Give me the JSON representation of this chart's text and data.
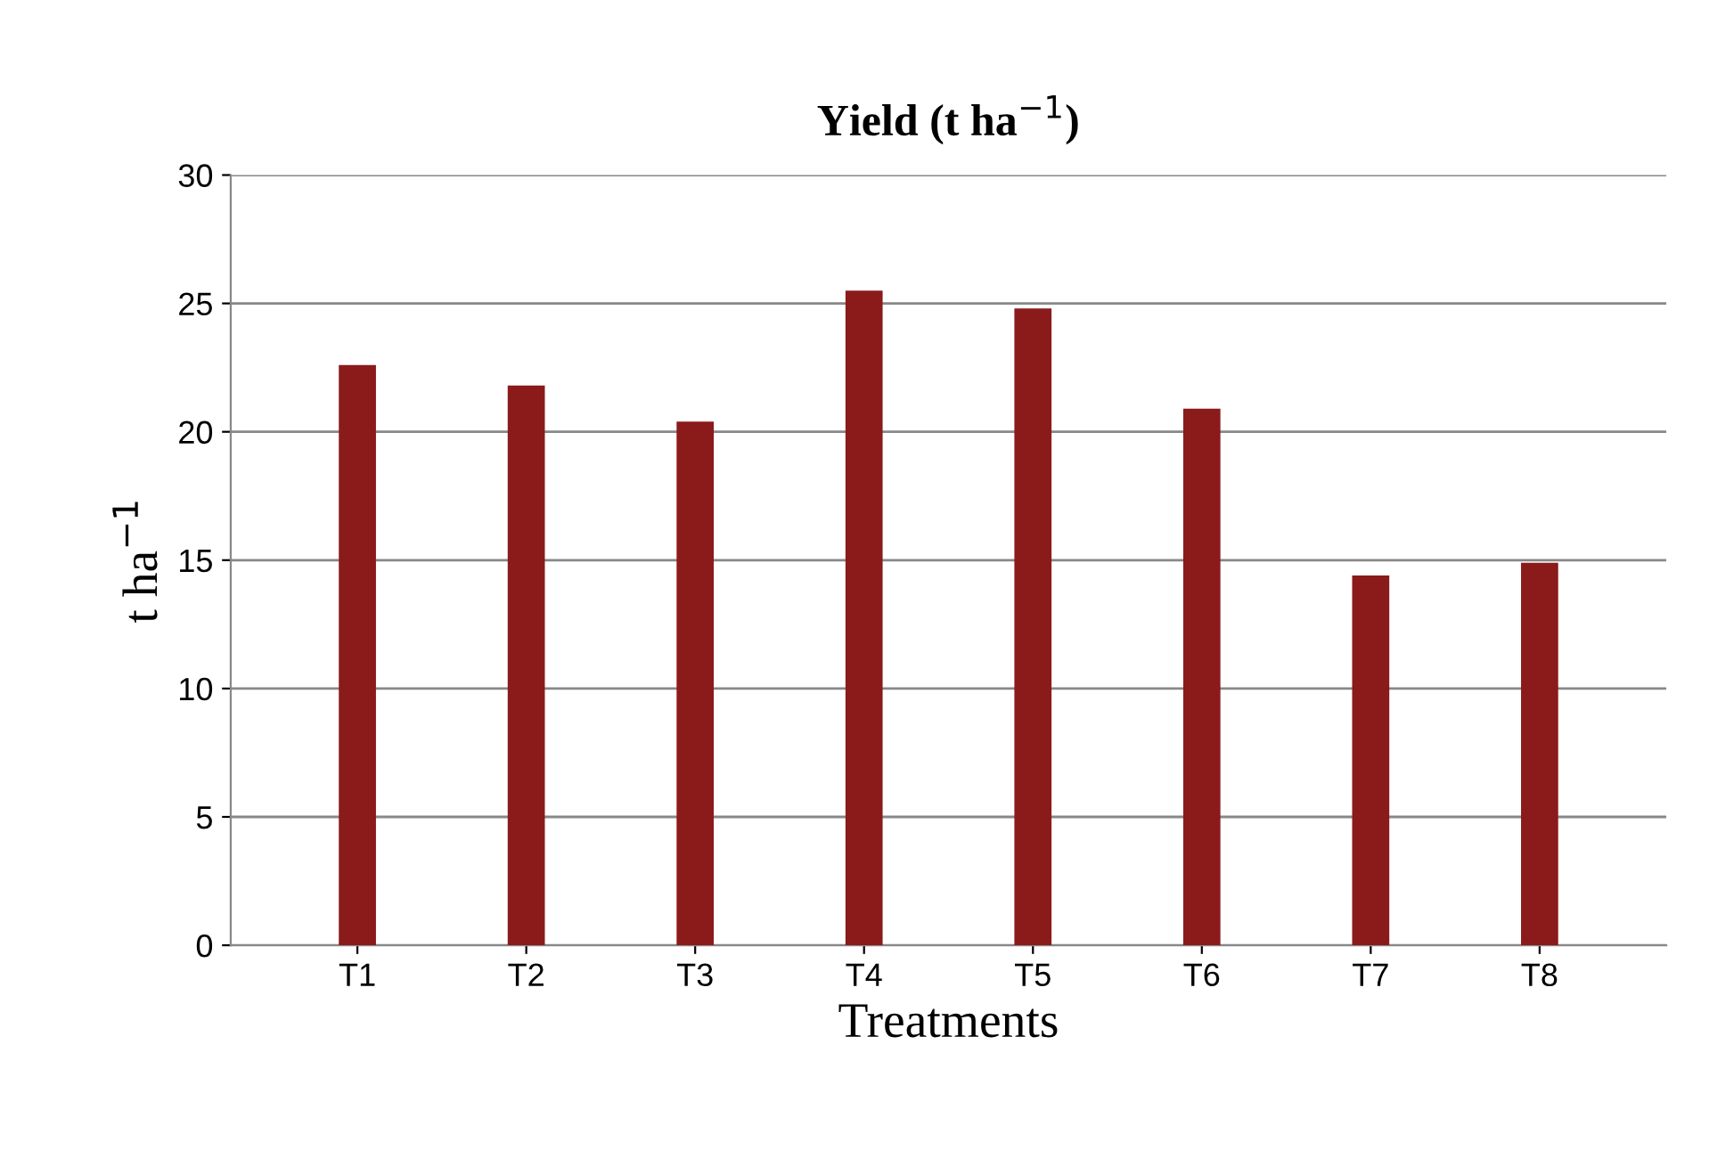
{
  "chart_data": {
    "type": "bar",
    "title": "Yield (t ha$^{−1}$)",
    "xlabel": "Treatments",
    "ylabel": "t ha$^{−1}$",
    "categories": [
      "T1",
      "T2",
      "T3",
      "T4",
      "T5",
      "T6",
      "T7",
      "T8"
    ],
    "values": [
      22.6,
      21.8,
      20.4,
      25.5,
      24.8,
      20.9,
      14.4,
      14.9
    ],
    "color": "#8b1a1a",
    "ylim": [
      0,
      30
    ],
    "yticks": [
      0,
      5,
      10,
      15,
      20,
      25,
      30
    ],
    "grid": "y",
    "legend": false
  }
}
